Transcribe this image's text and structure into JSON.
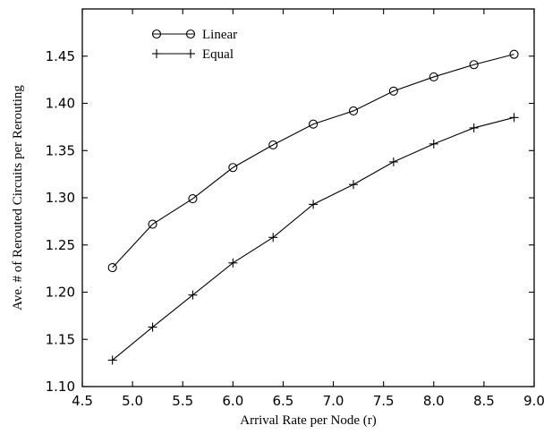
{
  "chart_data": {
    "type": "line",
    "title": "",
    "xlabel": "Arrival Rate per Node (r)",
    "ylabel": "Ave. # of Rerouted Circuits per Rerouting",
    "xlim": [
      4.5,
      9.0
    ],
    "ylim": [
      1.1,
      1.5
    ],
    "x_ticks": [
      "4.5",
      "5.0",
      "5.5",
      "6.0",
      "6.5",
      "7.0",
      "7.5",
      "8.0",
      "8.5",
      "9.0"
    ],
    "y_ticks": [
      "1.10",
      "1.15",
      "1.20",
      "1.25",
      "1.30",
      "1.35",
      "1.40",
      "1.45"
    ],
    "grid": false,
    "legend_position": "top-left",
    "series": [
      {
        "name": "Linear",
        "marker": "circle",
        "x": [
          4.8,
          5.2,
          5.6,
          6.0,
          6.4,
          6.8,
          7.2,
          7.6,
          8.0,
          8.4,
          8.8
        ],
        "values": [
          1.226,
          1.272,
          1.299,
          1.332,
          1.356,
          1.378,
          1.392,
          1.413,
          1.428,
          1.441,
          1.452
        ]
      },
      {
        "name": "Equal",
        "marker": "plus",
        "x": [
          4.8,
          5.2,
          5.6,
          6.0,
          6.4,
          6.8,
          7.2,
          7.6,
          8.0,
          8.4,
          8.8
        ],
        "values": [
          1.128,
          1.163,
          1.197,
          1.231,
          1.258,
          1.293,
          1.314,
          1.338,
          1.357,
          1.374,
          1.385
        ]
      }
    ]
  }
}
